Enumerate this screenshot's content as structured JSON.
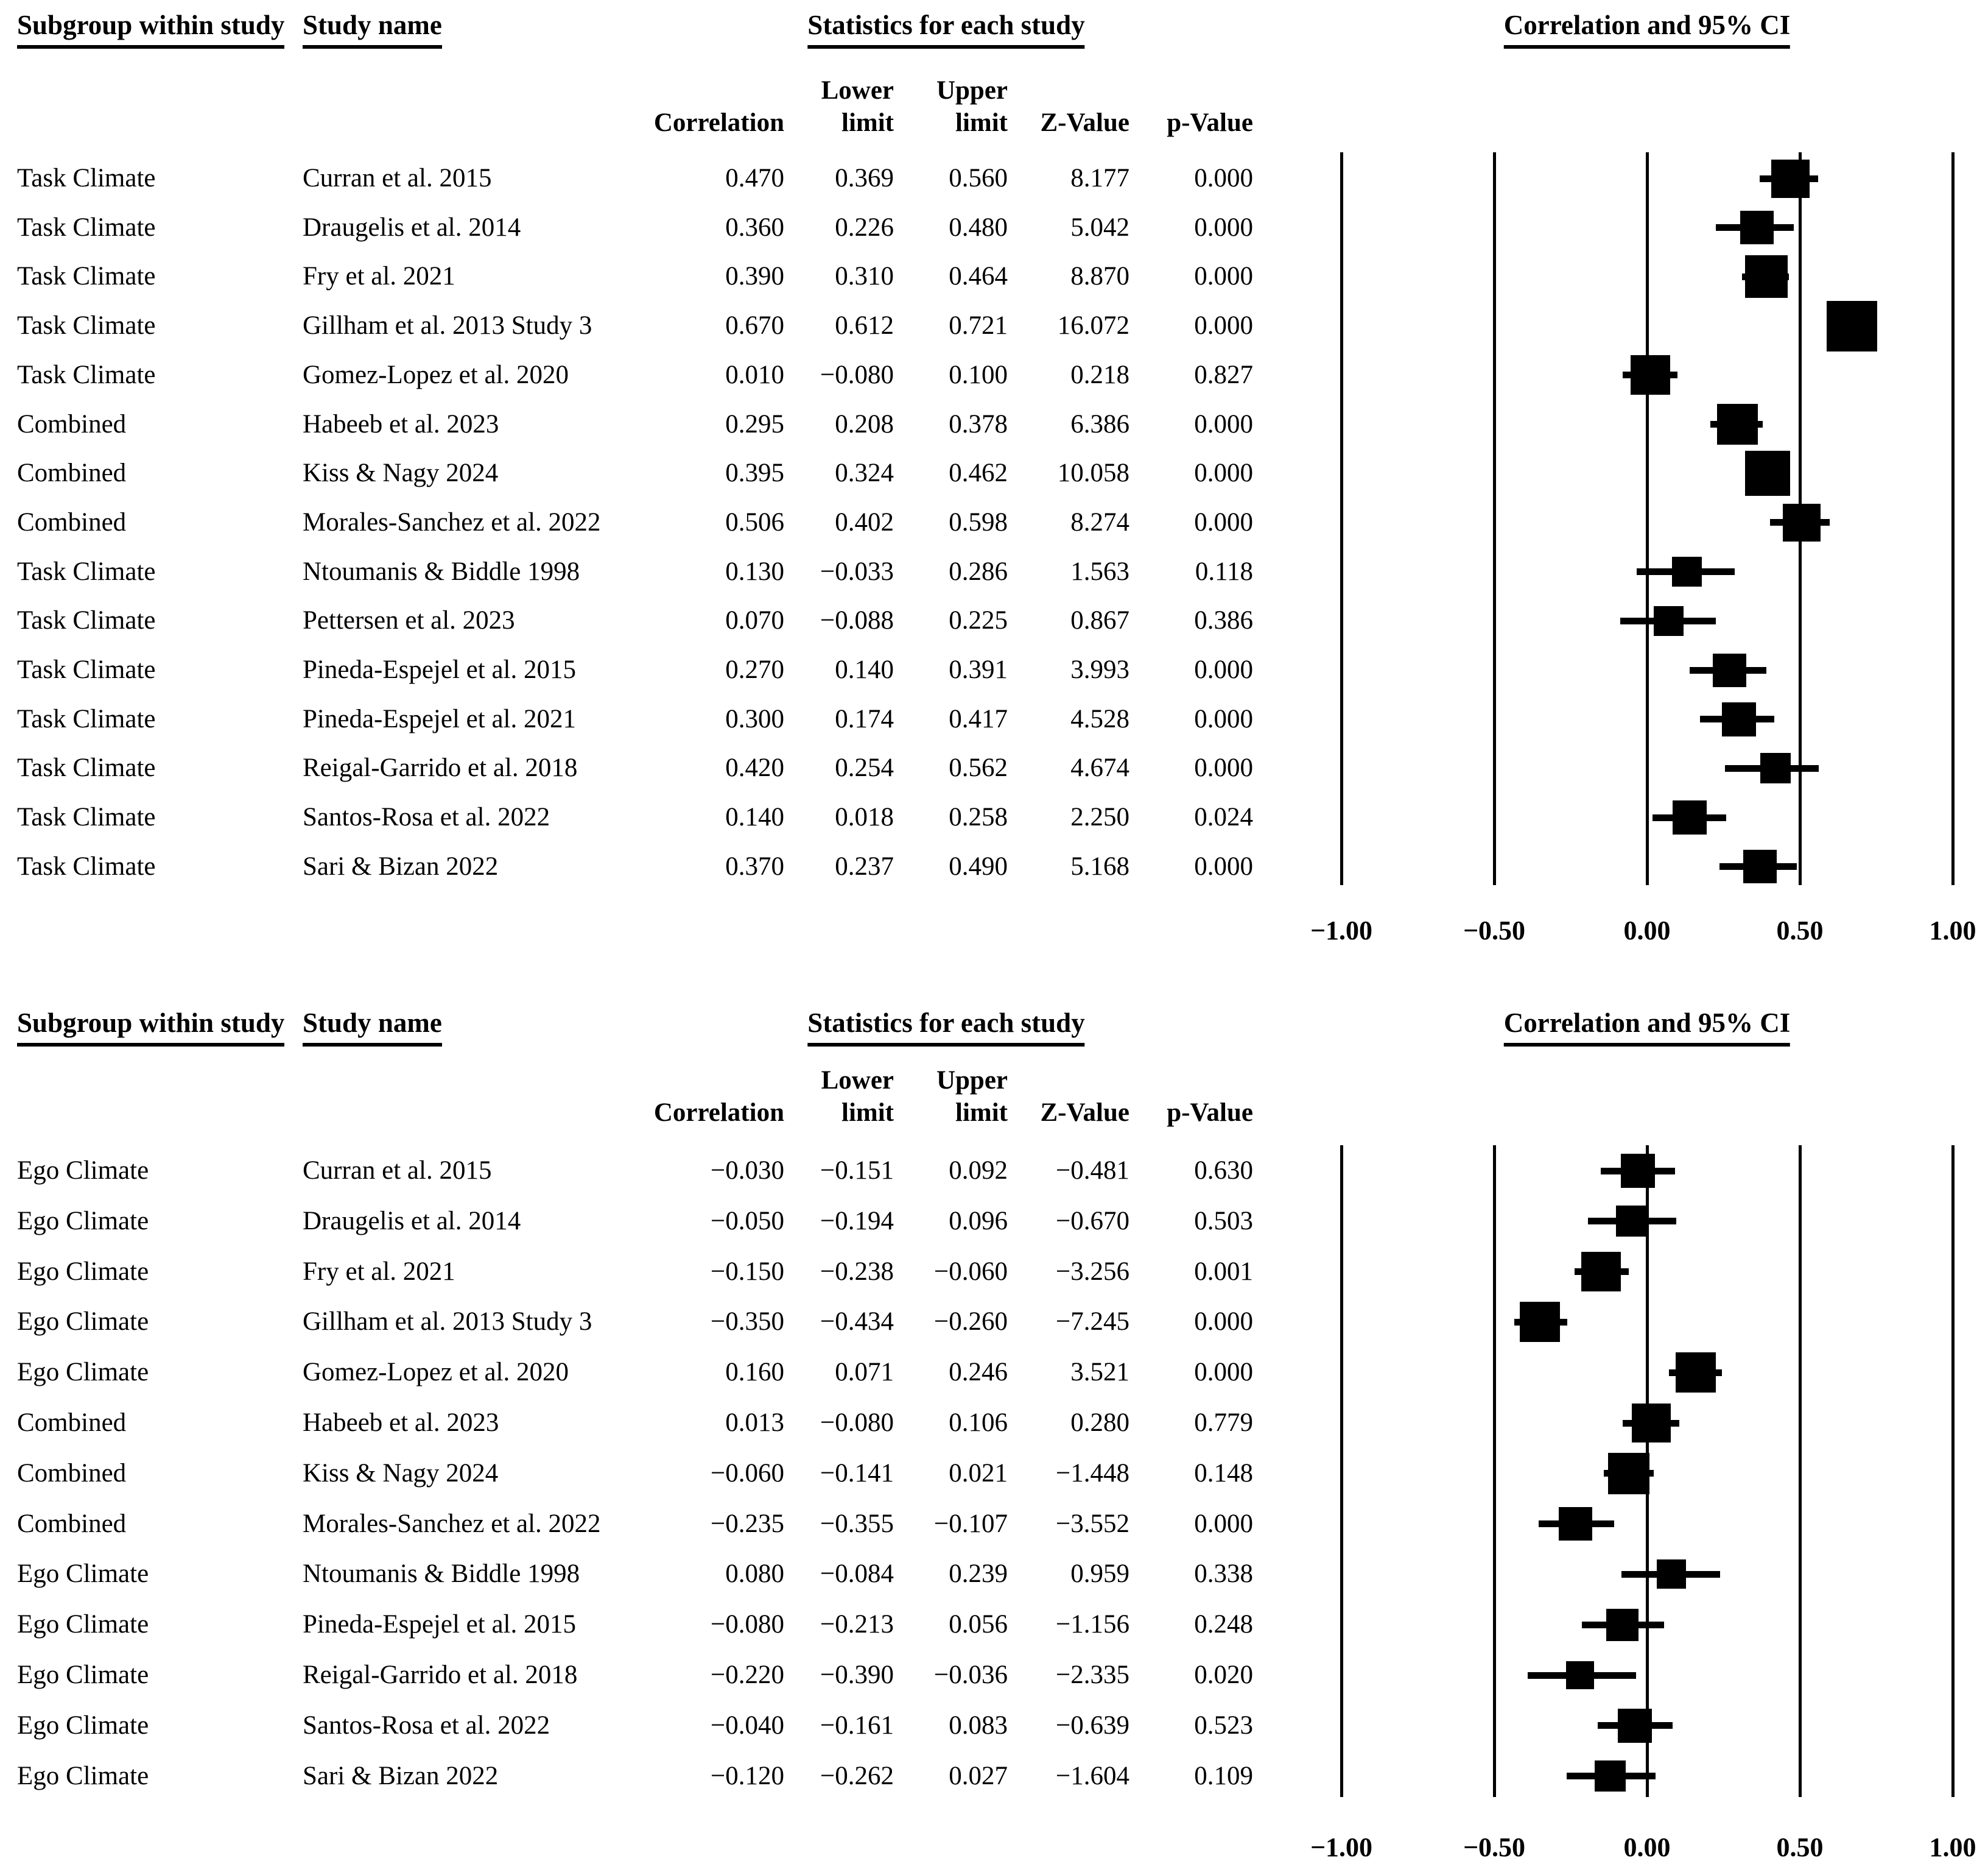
{
  "figure": {
    "headers": {
      "subgroup_col": "Subgroup within study",
      "study_col": "Study name",
      "stats_header": "Statistics for each study",
      "ci_header": "Correlation and 95% CI"
    },
    "stat_columns": {
      "correlation": "Correlation",
      "lower_top": "Lower",
      "lower_bottom": "limit",
      "upper_top": "Upper",
      "upper_bottom": "limit",
      "z": "Z-Value",
      "p": "p-Value"
    },
    "axis_tick_labels": [
      "−1.00",
      "−0.50",
      "0.00",
      "0.50",
      "1.00"
    ],
    "colors": {
      "ink": "#000000",
      "background": "#ffffff"
    }
  },
  "panels": [
    {
      "id": "task-climate",
      "rows": [
        {
          "subgroup": "Task Climate",
          "study": "Curran et al. 2015",
          "correlation": "0.470",
          "lower": "0.369",
          "upper": "0.560",
          "z": "8.177",
          "p": "0.000"
        },
        {
          "subgroup": "Task Climate",
          "study": "Draugelis et al. 2014",
          "correlation": "0.360",
          "lower": "0.226",
          "upper": "0.480",
          "z": "5.042",
          "p": "0.000"
        },
        {
          "subgroup": "Task Climate",
          "study": "Fry et al. 2021",
          "correlation": "0.390",
          "lower": "0.310",
          "upper": "0.464",
          "z": "8.870",
          "p": "0.000"
        },
        {
          "subgroup": "Task Climate",
          "study": "Gillham et al. 2013 Study 3",
          "correlation": "0.670",
          "lower": "0.612",
          "upper": "0.721",
          "z": "16.072",
          "p": "0.000"
        },
        {
          "subgroup": "Task Climate",
          "study": "Gomez-Lopez et al. 2020",
          "correlation": "0.010",
          "lower": "−0.080",
          "upper": "0.100",
          "z": "0.218",
          "p": "0.827"
        },
        {
          "subgroup": "Combined",
          "study": "Habeeb et al. 2023",
          "correlation": "0.295",
          "lower": "0.208",
          "upper": "0.378",
          "z": "6.386",
          "p": "0.000"
        },
        {
          "subgroup": "Combined",
          "study": "Kiss & Nagy 2024",
          "correlation": "0.395",
          "lower": "0.324",
          "upper": "0.462",
          "z": "10.058",
          "p": "0.000"
        },
        {
          "subgroup": "Combined",
          "study": "Morales-Sanchez et al. 2022",
          "correlation": "0.506",
          "lower": "0.402",
          "upper": "0.598",
          "z": "8.274",
          "p": "0.000"
        },
        {
          "subgroup": "Task Climate",
          "study": "Ntoumanis & Biddle 1998",
          "correlation": "0.130",
          "lower": "−0.033",
          "upper": "0.286",
          "z": "1.563",
          "p": "0.118"
        },
        {
          "subgroup": "Task Climate",
          "study": "Pettersen et al. 2023",
          "correlation": "0.070",
          "lower": "−0.088",
          "upper": "0.225",
          "z": "0.867",
          "p": "0.386"
        },
        {
          "subgroup": "Task Climate",
          "study": "Pineda-Espejel et al. 2015",
          "correlation": "0.270",
          "lower": "0.140",
          "upper": "0.391",
          "z": "3.993",
          "p": "0.000"
        },
        {
          "subgroup": "Task Climate",
          "study": "Pineda-Espejel et al. 2021",
          "correlation": "0.300",
          "lower": "0.174",
          "upper": "0.417",
          "z": "4.528",
          "p": "0.000"
        },
        {
          "subgroup": "Task Climate",
          "study": "Reigal-Garrido et al. 2018",
          "correlation": "0.420",
          "lower": "0.254",
          "upper": "0.562",
          "z": "4.674",
          "p": "0.000"
        },
        {
          "subgroup": "Task Climate",
          "study": "Santos-Rosa et al. 2022",
          "correlation": "0.140",
          "lower": "0.018",
          "upper": "0.258",
          "z": "2.250",
          "p": "0.024"
        },
        {
          "subgroup": "Task Climate",
          "study": "Sari & Bizan 2022",
          "correlation": "0.370",
          "lower": "0.237",
          "upper": "0.490",
          "z": "5.168",
          "p": "0.000"
        }
      ]
    },
    {
      "id": "ego-climate",
      "rows": [
        {
          "subgroup": "Ego Climate",
          "study": "Curran et al. 2015",
          "correlation": "−0.030",
          "lower": "−0.151",
          "upper": "0.092",
          "z": "−0.481",
          "p": "0.630"
        },
        {
          "subgroup": "Ego Climate",
          "study": "Draugelis et al. 2014",
          "correlation": "−0.050",
          "lower": "−0.194",
          "upper": "0.096",
          "z": "−0.670",
          "p": "0.503"
        },
        {
          "subgroup": "Ego Climate",
          "study": "Fry et al. 2021",
          "correlation": "−0.150",
          "lower": "−0.238",
          "upper": "−0.060",
          "z": "−3.256",
          "p": "0.001"
        },
        {
          "subgroup": "Ego Climate",
          "study": "Gillham et al. 2013 Study 3",
          "correlation": "−0.350",
          "lower": "−0.434",
          "upper": "−0.260",
          "z": "−7.245",
          "p": "0.000"
        },
        {
          "subgroup": "Ego Climate",
          "study": "Gomez-Lopez et al. 2020",
          "correlation": "0.160",
          "lower": "0.071",
          "upper": "0.246",
          "z": "3.521",
          "p": "0.000"
        },
        {
          "subgroup": "Combined",
          "study": "Habeeb et al. 2023",
          "correlation": "0.013",
          "lower": "−0.080",
          "upper": "0.106",
          "z": "0.280",
          "p": "0.779"
        },
        {
          "subgroup": "Combined",
          "study": "Kiss & Nagy 2024",
          "correlation": "−0.060",
          "lower": "−0.141",
          "upper": "0.021",
          "z": "−1.448",
          "p": "0.148"
        },
        {
          "subgroup": "Combined",
          "study": "Morales-Sanchez et al. 2022",
          "correlation": "−0.235",
          "lower": "−0.355",
          "upper": "−0.107",
          "z": "−3.552",
          "p": "0.000"
        },
        {
          "subgroup": "Ego Climate",
          "study": "Ntoumanis & Biddle 1998",
          "correlation": "0.080",
          "lower": "−0.084",
          "upper": "0.239",
          "z": "0.959",
          "p": "0.338"
        },
        {
          "subgroup": "Ego Climate",
          "study": "Pineda-Espejel et al. 2015",
          "correlation": "−0.080",
          "lower": "−0.213",
          "upper": "0.056",
          "z": "−1.156",
          "p": "0.248"
        },
        {
          "subgroup": "Ego Climate",
          "study": "Reigal-Garrido et al. 2018",
          "correlation": "−0.220",
          "lower": "−0.390",
          "upper": "−0.036",
          "z": "−2.335",
          "p": "0.020"
        },
        {
          "subgroup": "Ego Climate",
          "study": "Santos-Rosa et al. 2022",
          "correlation": "−0.040",
          "lower": "−0.161",
          "upper": "0.083",
          "z": "−0.639",
          "p": "0.523"
        },
        {
          "subgroup": "Ego Climate",
          "study": "Sari & Bizan 2022",
          "correlation": "−0.120",
          "lower": "−0.262",
          "upper": "0.027",
          "z": "−1.604",
          "p": "0.109"
        }
      ]
    }
  ],
  "chart_data": [
    {
      "type": "scatter",
      "subtype": "forest-plot",
      "title": "Correlation and 95% CI",
      "panel": "Task Climate (top)",
      "xlabel": "Correlation",
      "xlim": [
        -1.0,
        1.0
      ],
      "x_ticks": [
        -1.0,
        -0.5,
        0.0,
        0.5,
        1.0
      ],
      "grid": "vertical lines at every tick",
      "legend_position": "none",
      "marker": "black square sized by study weight, horizontal CI whisker",
      "series": [
        {
          "subgroup": "Task Climate",
          "study": "Curran et al. 2015",
          "correlation": 0.47,
          "ci_lower": 0.369,
          "ci_upper": 0.56,
          "z_value": 8.177,
          "p_value": 0.0
        },
        {
          "subgroup": "Task Climate",
          "study": "Draugelis et al. 2014",
          "correlation": 0.36,
          "ci_lower": 0.226,
          "ci_upper": 0.48,
          "z_value": 5.042,
          "p_value": 0.0
        },
        {
          "subgroup": "Task Climate",
          "study": "Fry et al. 2021",
          "correlation": 0.39,
          "ci_lower": 0.31,
          "ci_upper": 0.464,
          "z_value": 8.87,
          "p_value": 0.0
        },
        {
          "subgroup": "Task Climate",
          "study": "Gillham et al. 2013 Study 3",
          "correlation": 0.67,
          "ci_lower": 0.612,
          "ci_upper": 0.721,
          "z_value": 16.072,
          "p_value": 0.0
        },
        {
          "subgroup": "Task Climate",
          "study": "Gomez-Lopez et al. 2020",
          "correlation": 0.01,
          "ci_lower": -0.08,
          "ci_upper": 0.1,
          "z_value": 0.218,
          "p_value": 0.827
        },
        {
          "subgroup": "Combined",
          "study": "Habeeb et al. 2023",
          "correlation": 0.295,
          "ci_lower": 0.208,
          "ci_upper": 0.378,
          "z_value": 6.386,
          "p_value": 0.0
        },
        {
          "subgroup": "Combined",
          "study": "Kiss & Nagy 2024",
          "correlation": 0.395,
          "ci_lower": 0.324,
          "ci_upper": 0.462,
          "z_value": 10.058,
          "p_value": 0.0
        },
        {
          "subgroup": "Combined",
          "study": "Morales-Sanchez et al. 2022",
          "correlation": 0.506,
          "ci_lower": 0.402,
          "ci_upper": 0.598,
          "z_value": 8.274,
          "p_value": 0.0
        },
        {
          "subgroup": "Task Climate",
          "study": "Ntoumanis & Biddle 1998",
          "correlation": 0.13,
          "ci_lower": -0.033,
          "ci_upper": 0.286,
          "z_value": 1.563,
          "p_value": 0.118
        },
        {
          "subgroup": "Task Climate",
          "study": "Pettersen et al. 2023",
          "correlation": 0.07,
          "ci_lower": -0.088,
          "ci_upper": 0.225,
          "z_value": 0.867,
          "p_value": 0.386
        },
        {
          "subgroup": "Task Climate",
          "study": "Pineda-Espejel et al. 2015",
          "correlation": 0.27,
          "ci_lower": 0.14,
          "ci_upper": 0.391,
          "z_value": 3.993,
          "p_value": 0.0
        },
        {
          "subgroup": "Task Climate",
          "study": "Pineda-Espejel et al. 2021",
          "correlation": 0.3,
          "ci_lower": 0.174,
          "ci_upper": 0.417,
          "z_value": 4.528,
          "p_value": 0.0
        },
        {
          "subgroup": "Task Climate",
          "study": "Reigal-Garrido et al. 2018",
          "correlation": 0.42,
          "ci_lower": 0.254,
          "ci_upper": 0.562,
          "z_value": 4.674,
          "p_value": 0.0
        },
        {
          "subgroup": "Task Climate",
          "study": "Santos-Rosa et al. 2022",
          "correlation": 0.14,
          "ci_lower": 0.018,
          "ci_upper": 0.258,
          "z_value": 2.25,
          "p_value": 0.024
        },
        {
          "subgroup": "Task Climate",
          "study": "Sari & Bizan 2022",
          "correlation": 0.37,
          "ci_lower": 0.237,
          "ci_upper": 0.49,
          "z_value": 5.168,
          "p_value": 0.0
        }
      ]
    },
    {
      "type": "scatter",
      "subtype": "forest-plot",
      "title": "Correlation and 95% CI",
      "panel": "Ego Climate (bottom)",
      "xlabel": "Correlation",
      "xlim": [
        -1.0,
        1.0
      ],
      "x_ticks": [
        -1.0,
        -0.5,
        0.0,
        0.5,
        1.0
      ],
      "grid": "vertical lines at every tick",
      "legend_position": "none",
      "marker": "black square sized by study weight, horizontal CI whisker",
      "series": [
        {
          "subgroup": "Ego Climate",
          "study": "Curran et al. 2015",
          "correlation": -0.03,
          "ci_lower": -0.151,
          "ci_upper": 0.092,
          "z_value": -0.481,
          "p_value": 0.63
        },
        {
          "subgroup": "Ego Climate",
          "study": "Draugelis et al. 2014",
          "correlation": -0.05,
          "ci_lower": -0.194,
          "ci_upper": 0.096,
          "z_value": -0.67,
          "p_value": 0.503
        },
        {
          "subgroup": "Ego Climate",
          "study": "Fry et al. 2021",
          "correlation": -0.15,
          "ci_lower": -0.238,
          "ci_upper": -0.06,
          "z_value": -3.256,
          "p_value": 0.001
        },
        {
          "subgroup": "Ego Climate",
          "study": "Gillham et al. 2013 Study 3",
          "correlation": -0.35,
          "ci_lower": -0.434,
          "ci_upper": -0.26,
          "z_value": -7.245,
          "p_value": 0.0
        },
        {
          "subgroup": "Ego Climate",
          "study": "Gomez-Lopez et al. 2020",
          "correlation": 0.16,
          "ci_lower": 0.071,
          "ci_upper": 0.246,
          "z_value": 3.521,
          "p_value": 0.0
        },
        {
          "subgroup": "Combined",
          "study": "Habeeb et al. 2023",
          "correlation": 0.013,
          "ci_lower": -0.08,
          "ci_upper": 0.106,
          "z_value": 0.28,
          "p_value": 0.779
        },
        {
          "subgroup": "Combined",
          "study": "Kiss & Nagy 2024",
          "correlation": -0.06,
          "ci_lower": -0.141,
          "ci_upper": 0.021,
          "z_value": -1.448,
          "p_value": 0.148
        },
        {
          "subgroup": "Combined",
          "study": "Morales-Sanchez et al. 2022",
          "correlation": -0.235,
          "ci_lower": -0.355,
          "ci_upper": -0.107,
          "z_value": -3.552,
          "p_value": 0.0
        },
        {
          "subgroup": "Ego Climate",
          "study": "Ntoumanis & Biddle 1998",
          "correlation": 0.08,
          "ci_lower": -0.084,
          "ci_upper": 0.239,
          "z_value": 0.959,
          "p_value": 0.338
        },
        {
          "subgroup": "Ego Climate",
          "study": "Pineda-Espejel et al. 2015",
          "correlation": -0.08,
          "ci_lower": -0.213,
          "ci_upper": 0.056,
          "z_value": -1.156,
          "p_value": 0.248
        },
        {
          "subgroup": "Ego Climate",
          "study": "Reigal-Garrido et al. 2018",
          "correlation": -0.22,
          "ci_lower": -0.39,
          "ci_upper": -0.036,
          "z_value": -2.335,
          "p_value": 0.02
        },
        {
          "subgroup": "Ego Climate",
          "study": "Santos-Rosa et al. 2022",
          "correlation": -0.04,
          "ci_lower": -0.161,
          "ci_upper": 0.083,
          "z_value": -0.639,
          "p_value": 0.523
        },
        {
          "subgroup": "Ego Climate",
          "study": "Sari & Bizan 2022",
          "correlation": -0.12,
          "ci_lower": -0.262,
          "ci_upper": 0.027,
          "z_value": -1.604,
          "p_value": 0.109
        }
      ]
    }
  ]
}
